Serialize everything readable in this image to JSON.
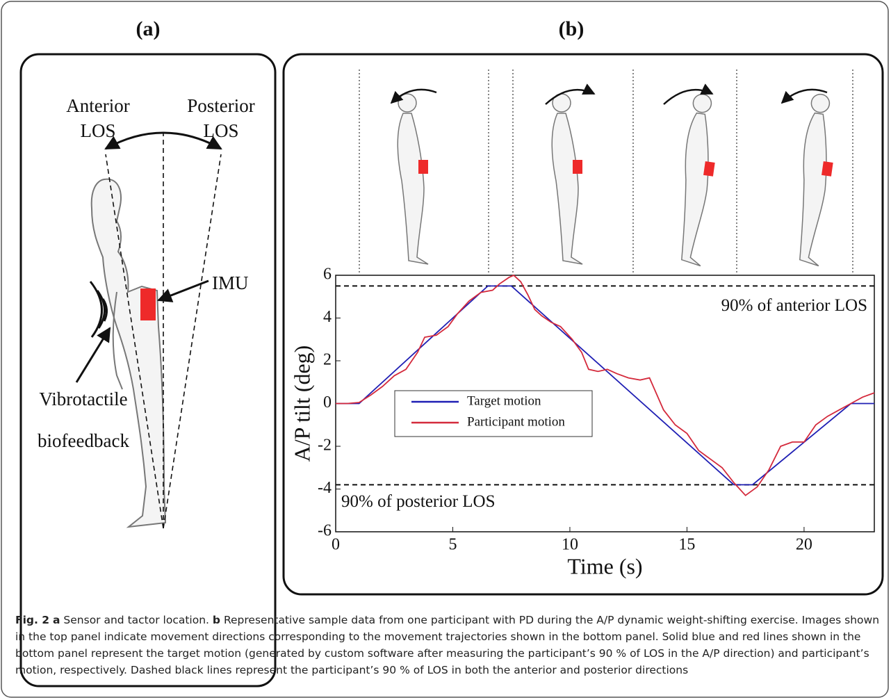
{
  "panels": {
    "a": {
      "label": "(a)",
      "anterior_los": [
        "Anterior",
        "LOS"
      ],
      "posterior_los": [
        "Posterior",
        "LOS"
      ],
      "imu": "IMU",
      "feedback": [
        "Vibrotactile",
        "biofeedback"
      ]
    },
    "b": {
      "label": "(b)"
    }
  },
  "chart_data": {
    "type": "line",
    "x_label": "Time (s)",
    "y_label": "A/P tilt (deg)",
    "xlim": [
      0,
      23
    ],
    "ylim": [
      -6,
      6
    ],
    "xticks": [
      0,
      5,
      10,
      15,
      20
    ],
    "yticks": [
      6,
      4,
      2,
      0,
      -2,
      -4,
      -6
    ],
    "reference_lines": [
      {
        "value": 5.5,
        "label": "90% of anterior LOS"
      },
      {
        "value": -3.8,
        "label": "90% of posterior LOS"
      }
    ],
    "series": [
      {
        "name": "Target motion",
        "color": "#1f1fb4",
        "x": [
          0,
          1,
          6.5,
          7.5,
          17,
          17.8,
          22,
          23
        ],
        "values": [
          0,
          0,
          5.5,
          5.5,
          -3.8,
          -3.8,
          0,
          0
        ]
      },
      {
        "name": "Participant motion",
        "color": "#d42a3c",
        "x": [
          0,
          0.5,
          1,
          1.5,
          2,
          2.5,
          3,
          3.5,
          3.8,
          4.3,
          4.8,
          5.2,
          5.7,
          6.2,
          6.7,
          7,
          7.4,
          7.6,
          7.9,
          8.2,
          8.5,
          8.8,
          9.2,
          9.6,
          10.1,
          10.5,
          10.8,
          11.2,
          11.6,
          12,
          12.5,
          13,
          13.4,
          13.6,
          14,
          14.5,
          15,
          15.5,
          16,
          16.5,
          17,
          17.5,
          18,
          18.5,
          19,
          19.5,
          20,
          20.5,
          21,
          21.5,
          22,
          22.5,
          23
        ],
        "values": [
          0,
          0,
          0.05,
          0.4,
          0.8,
          1.3,
          1.6,
          2.4,
          3.1,
          3.2,
          3.6,
          4.2,
          4.8,
          5.2,
          5.3,
          5.6,
          5.9,
          6,
          5.7,
          5.1,
          4.4,
          4.1,
          3.8,
          3.6,
          3,
          2.4,
          1.6,
          1.5,
          1.6,
          1.4,
          1.2,
          1.1,
          1.2,
          0.7,
          -0.3,
          -1,
          -1.4,
          -2.2,
          -2.6,
          -3,
          -3.7,
          -4.3,
          -3.9,
          -3.1,
          -2,
          -1.8,
          -1.8,
          -1,
          -0.6,
          -0.3,
          0,
          0.3,
          0.5
        ]
      }
    ]
  },
  "caption": {
    "label": "Fig. 2",
    "a_label": "a",
    "a_text": "Sensor and tactor location.",
    "b_label": "b",
    "b_text": "Representative sample data from one participant with PD during the A/P dynamic weight-shifting exercise. Images shown in the top panel indicate movement directions corresponding to the movement trajectories shown in the bottom panel. Solid blue and red lines shown in the bottom panel represent the target motion (generated by custom software after measuring the participant’s 90 % of LOS in the A/P direction) and participant’s motion, respectively. Dashed black lines represent the participant’s 90 % of LOS in both the anterior and posterior directions"
  }
}
